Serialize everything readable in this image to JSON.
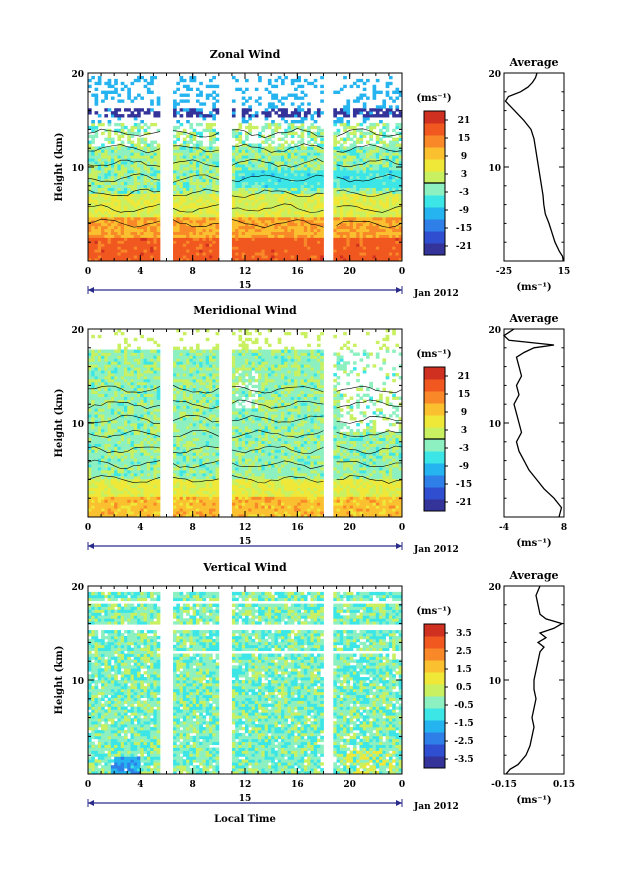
{
  "local_time_label": "Local Time",
  "chart_data": [
    {
      "type": "heatmap",
      "title": "Zonal Wind",
      "ylabel": "Height (km)",
      "ylim": [
        0,
        20
      ],
      "y_ticks": [
        "20",
        "10"
      ],
      "x_ticks": [
        "0",
        "4",
        "8",
        "12",
        "16",
        "20",
        "0"
      ],
      "date_day": "15",
      "date_label": "Jan 2012",
      "colorbar": {
        "unit": "(ms⁻¹)",
        "range": [
          -24,
          24
        ],
        "ticks": [
          "21",
          "15",
          "9",
          "3",
          "-3",
          "-9",
          "-15",
          "-21"
        ],
        "tick_values": [
          21,
          15,
          9,
          3,
          -3,
          -9,
          -15,
          -21
        ]
      },
      "average": {
        "title": "Average",
        "x_ticks": [
          "-25",
          "15"
        ],
        "xlim": [
          -25,
          15
        ],
        "y_ticks": [
          "20",
          "10"
        ],
        "unit": "(ms⁻¹)",
        "profile": [
          [
            14.5,
            0
          ],
          [
            14,
            0.5
          ],
          [
            12,
            1
          ],
          [
            9,
            2
          ],
          [
            7,
            3
          ],
          [
            5,
            4
          ],
          [
            2.5,
            5
          ],
          [
            1.5,
            6
          ],
          [
            1,
            7
          ],
          [
            0,
            8
          ],
          [
            -1,
            9
          ],
          [
            -2,
            10
          ],
          [
            -3,
            11
          ],
          [
            -4,
            12
          ],
          [
            -5,
            13
          ],
          [
            -7,
            14
          ],
          [
            -12,
            15
          ],
          [
            -18,
            16
          ],
          [
            -24,
            17
          ],
          [
            -22,
            17.5
          ],
          [
            -14,
            18
          ],
          [
            -9,
            18.5
          ],
          [
            -6,
            19
          ],
          [
            -4,
            19.5
          ],
          [
            -3,
            20
          ]
        ]
      }
    },
    {
      "type": "heatmap",
      "title": "Meridional Wind",
      "ylabel": "Height (km)",
      "ylim": [
        0,
        20
      ],
      "y_ticks": [
        "20",
        "10"
      ],
      "x_ticks": [
        "0",
        "4",
        "8",
        "12",
        "16",
        "20",
        "0"
      ],
      "date_day": "15",
      "date_label": "Jan 2012",
      "colorbar": {
        "unit": "(ms⁻¹)",
        "range": [
          -24,
          24
        ],
        "ticks": [
          "21",
          "15",
          "9",
          "3",
          "-3",
          "-9",
          "-15",
          "-21"
        ],
        "tick_values": [
          21,
          15,
          9,
          3,
          -3,
          -9,
          -15,
          -21
        ]
      },
      "average": {
        "title": "Average",
        "x_ticks": [
          "-4",
          "8"
        ],
        "xlim": [
          -4,
          8
        ],
        "y_ticks": [
          "20",
          "10"
        ],
        "unit": "(ms⁻¹)",
        "profile": [
          [
            7,
            0
          ],
          [
            7.5,
            1
          ],
          [
            6,
            2
          ],
          [
            4,
            3
          ],
          [
            2.5,
            4
          ],
          [
            1,
            5
          ],
          [
            0,
            6
          ],
          [
            -1,
            7
          ],
          [
            -1.5,
            8
          ],
          [
            -0.5,
            9
          ],
          [
            -1,
            10
          ],
          [
            -1.5,
            11
          ],
          [
            -2,
            12
          ],
          [
            -1,
            13
          ],
          [
            -1.5,
            14
          ],
          [
            -0.5,
            15
          ],
          [
            -1,
            16
          ],
          [
            -1.5,
            17
          ],
          [
            0,
            17.5
          ],
          [
            2,
            18
          ],
          [
            6,
            18.3
          ],
          [
            -3,
            18.8
          ],
          [
            -4,
            19.3
          ],
          [
            -2,
            20
          ]
        ]
      }
    },
    {
      "type": "heatmap",
      "title": "Vertical Wind",
      "ylabel": "Height (km)",
      "ylim": [
        0,
        20
      ],
      "y_ticks": [
        "20",
        "10"
      ],
      "x_ticks": [
        "0",
        "4",
        "8",
        "12",
        "16",
        "20",
        "0"
      ],
      "date_day": "15",
      "date_label": "Jan 2012",
      "colorbar": {
        "unit": "(ms⁻¹)",
        "range": [
          -4,
          4
        ],
        "ticks": [
          "3.5",
          "2.5",
          "1.5",
          "0.5",
          "-0.5",
          "-1.5",
          "-2.5",
          "-3.5"
        ],
        "tick_values": [
          3.5,
          2.5,
          1.5,
          0.5,
          -0.5,
          -1.5,
          -2.5,
          -3.5
        ]
      },
      "average": {
        "title": "Average",
        "x_ticks": [
          "-0.15",
          "0.15"
        ],
        "xlim": [
          -0.15,
          0.15
        ],
        "y_ticks": [
          "20",
          "10"
        ],
        "unit": "(ms⁻¹)",
        "profile": [
          [
            -0.14,
            0
          ],
          [
            -0.12,
            0.5
          ],
          [
            -0.08,
            1
          ],
          [
            -0.04,
            2
          ],
          [
            -0.02,
            3
          ],
          [
            -0.01,
            4
          ],
          [
            0,
            5
          ],
          [
            -0.01,
            6
          ],
          [
            0,
            7
          ],
          [
            0.01,
            8
          ],
          [
            0,
            9
          ],
          [
            0,
            10
          ],
          [
            0.01,
            11
          ],
          [
            0.02,
            12
          ],
          [
            0.03,
            13
          ],
          [
            0.05,
            13.5
          ],
          [
            0.02,
            14
          ],
          [
            0.06,
            14.5
          ],
          [
            0.03,
            15
          ],
          [
            0.1,
            15.5
          ],
          [
            0.14,
            16
          ],
          [
            0.06,
            16.5
          ],
          [
            0.03,
            17
          ],
          [
            0.02,
            18
          ],
          [
            0.01,
            19
          ],
          [
            0.03,
            20
          ]
        ]
      }
    }
  ]
}
